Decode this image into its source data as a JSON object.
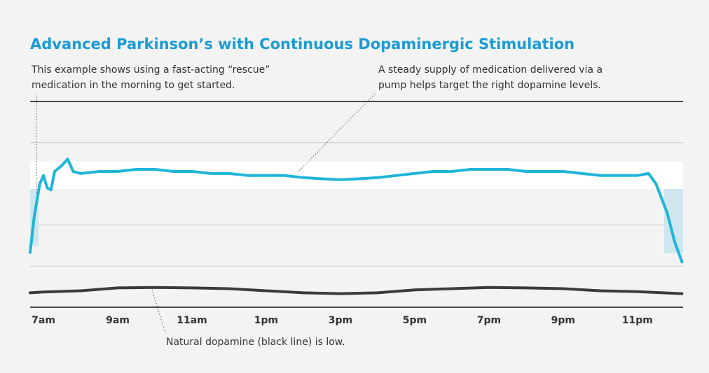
{
  "chart_data": {
    "type": "line",
    "title": "Advanced Parkinson’s with Continuous Dopaminergic Stimulation",
    "annotations": [
      {
        "lines": [
          "This example shows using a fast-acting “rescue”",
          "medication in the morning to get started."
        ]
      },
      {
        "lines": [
          "A steady supply of medication delivered via a",
          "pump helps target the right dopamine levels."
        ]
      },
      {
        "lines": [
          "Natural dopamine (black line) is low."
        ]
      }
    ],
    "xlim": [
      6.64,
      24.23
    ],
    "xticks": [
      {
        "value": 7,
        "label": "7am"
      },
      {
        "value": 9,
        "label": "9am"
      },
      {
        "value": 11,
        "label": "11am"
      },
      {
        "value": 13,
        "label": "1pm"
      },
      {
        "value": 15,
        "label": "3pm"
      },
      {
        "value": 17,
        "label": "5pm"
      },
      {
        "value": 19,
        "label": "7pm"
      },
      {
        "value": 21,
        "label": "9pm"
      },
      {
        "value": 23,
        "label": "11pm"
      }
    ],
    "ylim": [
      0,
      5
    ],
    "yticks": [
      0,
      1,
      2,
      3,
      4,
      5
    ],
    "grid": true,
    "series": [
      {
        "color": "#1fb5d8",
        "x": [
          6.64,
          6.75,
          6.9,
          7.0,
          7.1,
          7.2,
          7.3,
          7.5,
          7.65,
          7.8,
          8,
          8.5,
          9,
          9.5,
          10,
          10.5,
          11,
          11.5,
          12,
          12.5,
          13,
          13.5,
          14,
          14.5,
          15,
          15.5,
          16,
          16.5,
          17,
          17.5,
          18,
          18.5,
          19,
          19.5,
          20,
          20.5,
          21,
          21.5,
          22,
          22.5,
          23,
          23.3,
          23.5,
          23.8,
          24.0,
          24.2
        ],
        "values": [
          1.33,
          2.2,
          3.0,
          3.2,
          2.9,
          2.85,
          3.3,
          3.45,
          3.6,
          3.3,
          3.25,
          3.3,
          3.3,
          3.35,
          3.35,
          3.3,
          3.3,
          3.25,
          3.25,
          3.2,
          3.2,
          3.2,
          3.15,
          3.12,
          3.1,
          3.12,
          3.15,
          3.2,
          3.25,
          3.3,
          3.3,
          3.35,
          3.35,
          3.35,
          3.3,
          3.3,
          3.3,
          3.25,
          3.2,
          3.2,
          3.2,
          3.25,
          3.0,
          2.3,
          1.6,
          1.1
        ]
      },
      {
        "color": "#3b3b3b",
        "x": [
          6.64,
          7,
          8,
          9,
          10,
          11,
          12,
          13,
          14,
          15,
          16,
          17,
          18,
          19,
          20,
          21,
          22,
          23,
          24.2
        ],
        "values": [
          0.35,
          0.37,
          0.4,
          0.47,
          0.48,
          0.47,
          0.45,
          0.4,
          0.35,
          0.33,
          0.35,
          0.42,
          0.45,
          0.48,
          0.47,
          0.45,
          0.4,
          0.38,
          0.33
        ]
      }
    ]
  }
}
